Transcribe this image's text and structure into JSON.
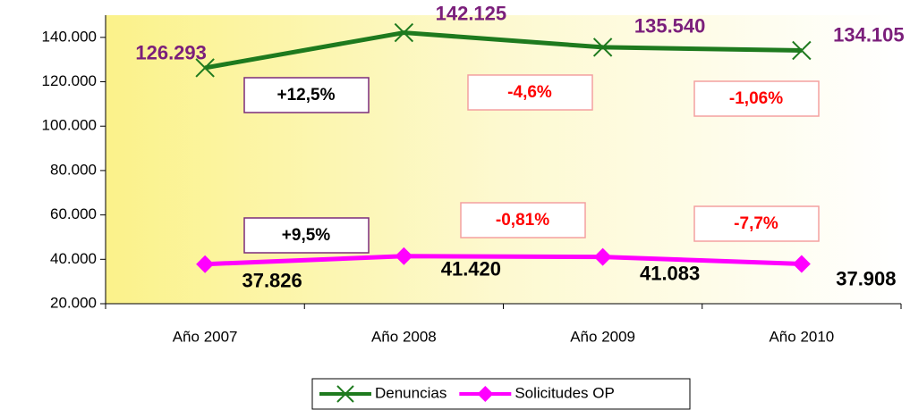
{
  "chart_data": {
    "type": "line",
    "categories": [
      "Año 2007",
      "Año 2008",
      "Año 2009",
      "Año 2010"
    ],
    "series": [
      {
        "name": "Denuncias",
        "color": "#1e7a1e",
        "label_color": "#7b1f7b",
        "marker": "x",
        "values": [
          126293,
          142125,
          135540,
          134105
        ],
        "value_labels": [
          "126.293",
          "142.125",
          "135.540",
          "134.105"
        ]
      },
      {
        "name": "Solicitudes OP",
        "color": "#ff00ff",
        "label_color": "#000000",
        "marker": "diamond",
        "values": [
          37826,
          41420,
          41083,
          37908
        ],
        "value_labels": [
          "37.826",
          "41.420",
          "41.083",
          "37.908"
        ]
      }
    ],
    "ylim": [
      20000,
      150000
    ],
    "yticks": [
      {
        "value": 20000,
        "label": "20.000"
      },
      {
        "value": 40000,
        "label": "40.000"
      },
      {
        "value": 60000,
        "label": "60.000"
      },
      {
        "value": 80000,
        "label": "80.000"
      },
      {
        "value": 100000,
        "label": "100.000"
      },
      {
        "value": 120000,
        "label": "120.000"
      },
      {
        "value": 140000,
        "label": "140.000"
      }
    ],
    "annotations": [
      {
        "text": "+12,5%",
        "color": "#000000",
        "border": "#7b2c7b"
      },
      {
        "text": "-4,6%",
        "color": "#ff0000",
        "border": "#f4a0a0"
      },
      {
        "text": "-1,06%",
        "color": "#ff0000",
        "border": "#f4a0a0"
      },
      {
        "text": "+9,5%",
        "color": "#000000",
        "border": "#7b2c7b"
      },
      {
        "text": "-0,81%",
        "color": "#ff0000",
        "border": "#f4a0a0"
      },
      {
        "text": "-7,7%",
        "color": "#ff0000",
        "border": "#f4a0a0"
      }
    ],
    "legend": "bottom"
  }
}
